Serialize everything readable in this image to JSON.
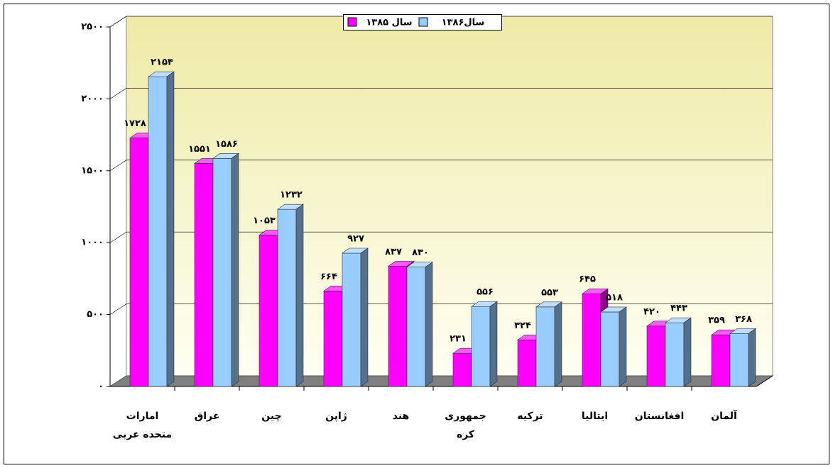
{
  "chart_data": {
    "type": "bar3d",
    "categories": [
      "امارات متحده عربی",
      "عراق",
      "چین",
      "ژاپن",
      "هند",
      "جمهوری کره",
      "ترکیه",
      "ایتالیا",
      "افغانستان",
      "آلمان"
    ],
    "series": [
      {
        "name": "سال ۱۳۸۵",
        "color": "#ff00ff",
        "values": [
          1728,
          1551,
          1053,
          664,
          837,
          231,
          324,
          645,
          420,
          359
        ],
        "value_labels": [
          "۱۷۲۸",
          "۱۵۵۱",
          "۱۰۵۳",
          "۶۶۴",
          "۸۳۷",
          "۲۳۱",
          "۳۲۴",
          "۶۴۵",
          "۴۲۰",
          "۳۵۹"
        ]
      },
      {
        "name": "سال۱۳۸۶",
        "color": "#99ccff",
        "values": [
          2154,
          1586,
          1232,
          927,
          830,
          556,
          553,
          518,
          443,
          368
        ],
        "value_labels": [
          "۲۱۵۴",
          "۱۵۸۶",
          "۱۲۳۲",
          "۹۲۷",
          "۸۳۰",
          "۵۵۶",
          "۵۵۳",
          "۵۱۸",
          "۴۴۳",
          "۳۶۸"
        ]
      }
    ],
    "ylim": [
      0,
      2500
    ],
    "yticks": [
      {
        "value": 0,
        "label": "۰"
      },
      {
        "value": 500,
        "label": "۵۰۰"
      },
      {
        "value": 1000,
        "label": "۱۰۰۰"
      },
      {
        "value": 1500,
        "label": "۱۵۰۰"
      },
      {
        "value": 2000,
        "label": "۲۰۰۰"
      },
      {
        "value": 2500,
        "label": "۲۵۰۰"
      }
    ],
    "grid": true,
    "legend": "top"
  }
}
